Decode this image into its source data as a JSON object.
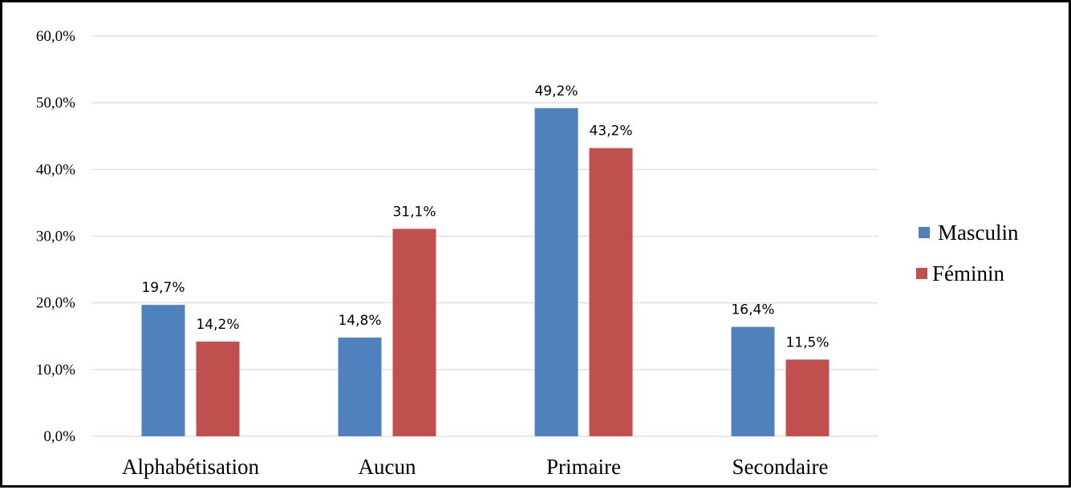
{
  "chart_data": {
    "type": "bar",
    "categories": [
      "Alphabétisation",
      "Aucun",
      "Primaire",
      "Secondaire"
    ],
    "series": [
      {
        "name": "Masculin",
        "values": [
          19.7,
          14.8,
          49.2,
          16.4
        ],
        "labels": [
          "19,7%",
          "14,8%",
          "49,2%",
          "16,4%"
        ],
        "color": "#4f81bd"
      },
      {
        "name": "Féminin",
        "values": [
          14.2,
          31.1,
          43.2,
          11.5
        ],
        "labels": [
          "14,2%",
          "31,1%",
          "43,2%",
          "11,5%"
        ],
        "color": "#c0504d"
      }
    ],
    "yticks": [
      {
        "value": 0,
        "label": "0,0%"
      },
      {
        "value": 10,
        "label": "10,0%"
      },
      {
        "value": 20,
        "label": "20,0%"
      },
      {
        "value": 30,
        "label": "30,0%"
      },
      {
        "value": 40,
        "label": "40,0%"
      },
      {
        "value": 50,
        "label": "50,0%"
      },
      {
        "value": 60,
        "label": "60,0%"
      }
    ],
    "ylim": [
      0,
      60
    ],
    "grid": true,
    "legend_position": "right",
    "gridline_color": "#d9d9d9"
  }
}
